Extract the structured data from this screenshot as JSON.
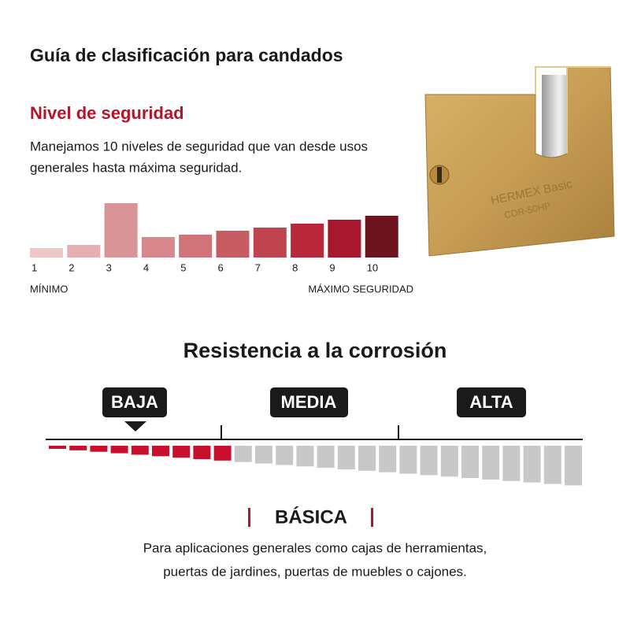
{
  "header": {
    "title": "Guía de clasificación para candados"
  },
  "security": {
    "heading": "Nivel de seguridad",
    "description": [
      "Manejamos 10 niveles de seguridad que van desde usos",
      "generales hasta máxima seguridad."
    ],
    "levels": [
      "1",
      "2",
      "3",
      "4",
      "5",
      "6",
      "7",
      "8",
      "9",
      "10"
    ],
    "min_label": "MÍNIMO",
    "max_label": "MÁXIMO SEGURIDAD"
  },
  "product": {
    "brand": "HERMEX Basic",
    "model": "CDR-50HP"
  },
  "corrosion": {
    "heading": "Resistencia a la corrosión",
    "levels": [
      "BAJA",
      "MEDIA",
      "ALTA"
    ],
    "rating": "BÁSICA",
    "description": [
      "Para aplicaciones generales como cajas de herramientas,",
      "puertas de jardines, puertas de muebles o cajones."
    ]
  }
}
